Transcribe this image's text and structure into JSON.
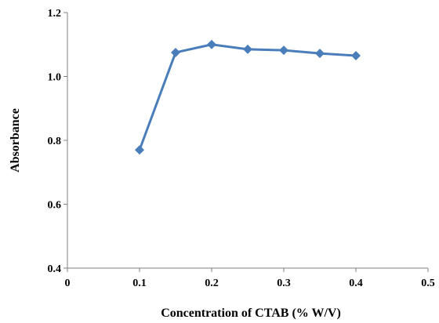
{
  "chart_data": {
    "type": "line",
    "title": "",
    "xlabel": "Concentration of CTAB (% W/V)",
    "ylabel": "Absorbance",
    "xlim": [
      0,
      0.5
    ],
    "ylim": [
      0.4,
      1.2
    ],
    "x_ticks": [
      0,
      0.1,
      0.2,
      0.3,
      0.4,
      0.5
    ],
    "x_tick_labels": [
      "0",
      "0.1",
      "0.2",
      "0.3",
      "0.4",
      "0.5"
    ],
    "y_ticks": [
      0.4,
      0.6,
      0.8,
      1.0,
      1.2
    ],
    "y_tick_labels": [
      "0.4",
      "0.6",
      "0.8",
      "1.0",
      "1.2"
    ],
    "grid": false,
    "legend": "none",
    "series": [
      {
        "color": "#4a7ebb",
        "marker": "diamond",
        "x": [
          0.1,
          0.15,
          0.2,
          0.25,
          0.3,
          0.35,
          0.4
        ],
        "y": [
          0.77,
          1.075,
          1.1,
          1.085,
          1.082,
          1.072,
          1.065
        ]
      }
    ]
  }
}
